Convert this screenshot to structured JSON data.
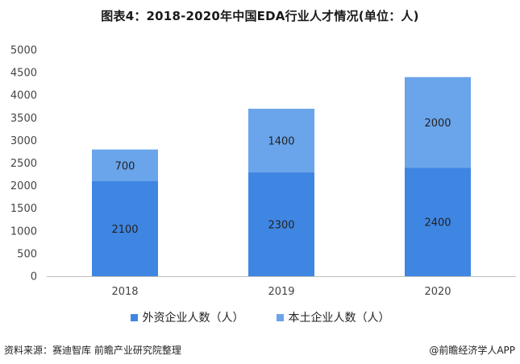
{
  "title": "图表4：2018-2020年中国EDA行业人才情况(单位：人)",
  "chart_data": {
    "type": "bar",
    "stacked": true,
    "categories": [
      "2018",
      "2019",
      "2020"
    ],
    "series": [
      {
        "name": "外资企业人数（人）",
        "values": [
          2100,
          2300,
          2400
        ],
        "color": "#3f86e3"
      },
      {
        "name": "本土企业人数（人）",
        "values": [
          700,
          1400,
          2000
        ],
        "color": "#6aa4ea"
      }
    ],
    "ylim": [
      0,
      5000
    ],
    "yticks": [
      0,
      500,
      1000,
      1500,
      2000,
      2500,
      3000,
      3500,
      4000,
      4500,
      5000
    ],
    "legend": "bottom",
    "grid": false
  },
  "footer": {
    "source": "资料来源：赛迪智库 前瞻产业研究院整理",
    "credit": "@前瞻经济学人APP"
  }
}
